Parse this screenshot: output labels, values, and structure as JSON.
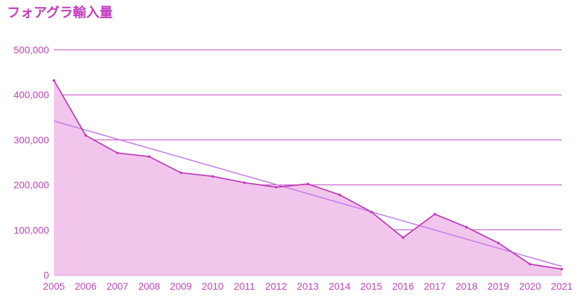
{
  "chart_data": {
    "type": "area",
    "title": "フォアグラ輸入量",
    "xlabel": "",
    "ylabel": "",
    "x": [
      "2005",
      "2006",
      "2007",
      "2008",
      "2009",
      "2010",
      "2011",
      "2012",
      "2013",
      "2014",
      "2015",
      "2016",
      "2017",
      "2018",
      "2019",
      "2020",
      "2021"
    ],
    "series": [
      {
        "values": [
          432000,
          310000,
          271000,
          263000,
          227000,
          219000,
          205000,
          195000,
          202000,
          178000,
          140000,
          83000,
          135000,
          106000,
          71000,
          24000,
          13000
        ]
      }
    ],
    "trendline": {
      "type": "linear",
      "start": 342000,
      "end": 19000
    },
    "ylim": [
      0,
      500000
    ],
    "yticks": [
      "0",
      "100,000",
      "200,000",
      "300,000",
      "400,000",
      "500,000"
    ],
    "grid": true,
    "legend": "none",
    "colors": {
      "title": "#c23fbd",
      "line": "#c03ab8",
      "fill": "#f2c6ec",
      "trend": "#c77cf0",
      "grid": "#c23fbd"
    }
  }
}
